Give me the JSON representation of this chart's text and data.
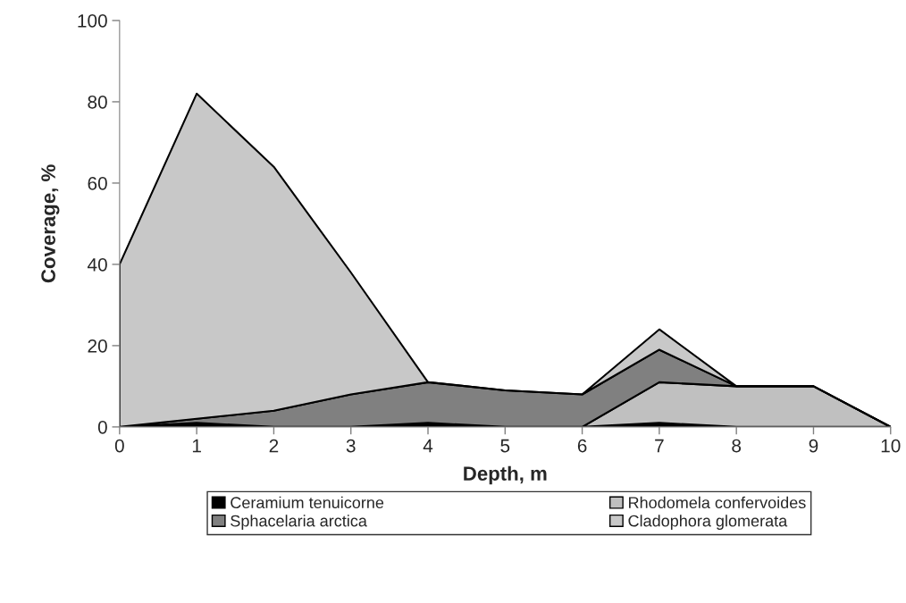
{
  "chart_data": {
    "type": "area",
    "stacked": true,
    "xlabel": "Depth, m",
    "ylabel": "Coverage, %",
    "x": [
      0,
      1,
      2,
      3,
      4,
      5,
      6,
      7,
      8,
      9,
      10
    ],
    "series": [
      {
        "name": "Ceramium tenuicorne",
        "color": "#000000",
        "values": [
          0,
          1,
          0,
          0,
          1,
          0,
          0,
          1,
          0,
          0,
          0
        ]
      },
      {
        "name": "Rhodomela confervoides",
        "color": "#c0c0c0",
        "values": [
          0,
          0,
          0,
          0,
          0,
          0,
          0,
          10,
          10,
          10,
          0
        ]
      },
      {
        "name": "Sphacelaria arctica",
        "color": "#808080",
        "values": [
          0,
          1,
          4,
          8,
          10,
          9,
          8,
          8,
          0,
          0,
          0
        ]
      },
      {
        "name": "Cladophora glomerata",
        "color": "#c8c8c8",
        "values": [
          40,
          80,
          60,
          30,
          0,
          0,
          0,
          5,
          0,
          0,
          0
        ]
      }
    ],
    "xlim": [
      0,
      10
    ],
    "xticks": [
      0,
      1,
      2,
      3,
      4,
      5,
      6,
      7,
      8,
      9,
      10
    ],
    "ylim": [
      0,
      100
    ],
    "yticks": [
      0,
      20,
      40,
      60,
      80,
      100
    ],
    "grid": false,
    "legend": "bottom"
  }
}
